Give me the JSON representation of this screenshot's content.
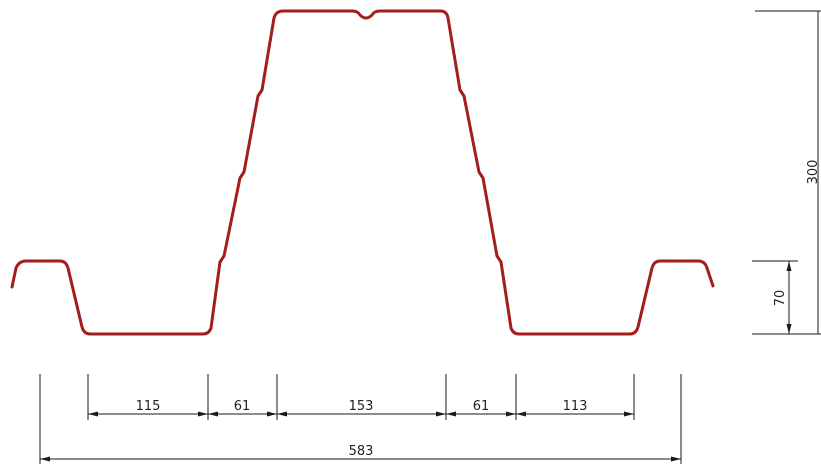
{
  "colors": {
    "profile": "#a31d1d",
    "dimension": "#1a1a1a"
  },
  "horizontal_dimensions": {
    "segment_1": "115",
    "segment_2": "61",
    "segment_3": "153",
    "segment_4": "61",
    "segment_5": "113",
    "total": "583"
  },
  "vertical_dimensions": {
    "total_height": "300",
    "rib_height": "70"
  }
}
